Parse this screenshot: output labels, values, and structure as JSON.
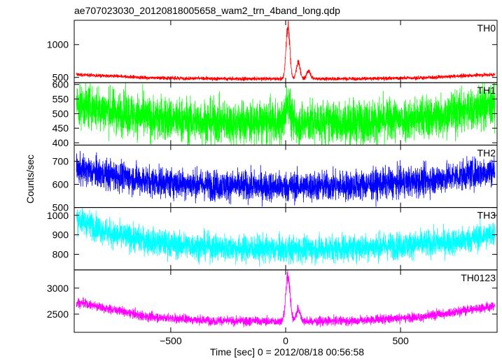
{
  "chart_data": {
    "type": "line",
    "title": "ae707023030_20120818005658_wam2_trn_4band_long.qdp",
    "ylabel": "Counts/sec",
    "xlabel": "Time [sec] 0 = 2012/08/18 00:56:58",
    "xlim": [
      -920,
      920
    ],
    "xticks": [
      -500,
      0,
      500
    ],
    "xtick_labels": [
      "−500",
      "0",
      "500"
    ],
    "panels": [
      {
        "name": "TH0",
        "color": "#ff0000",
        "ylim": [
          420,
          1370
        ],
        "yticks": [
          500,
          1000
        ],
        "baseline": [
          [
            -910,
            545
          ],
          [
            -600,
            495
          ],
          [
            -300,
            480
          ],
          [
            0,
            478
          ],
          [
            300,
            480
          ],
          [
            600,
            495
          ],
          [
            910,
            545
          ]
        ],
        "noise": 14,
        "peaks": [
          [
            10,
            1290
          ],
          [
            55,
            730
          ],
          [
            100,
            600
          ]
        ],
        "peak_width": 8
      },
      {
        "name": "TH1",
        "color": "#00ff00",
        "ylim": [
          392,
          606
        ],
        "yticks": [
          400,
          450,
          500,
          550,
          600
        ],
        "baseline": [
          [
            -910,
            530
          ],
          [
            -600,
            485
          ],
          [
            -300,
            470
          ],
          [
            0,
            468
          ],
          [
            300,
            470
          ],
          [
            600,
            485
          ],
          [
            910,
            530
          ]
        ],
        "noise": 38,
        "peaks": [
          [
            10,
            540
          ]
        ],
        "peak_width": 10
      },
      {
        "name": "TH2",
        "color": "#0000ff",
        "ylim": [
          500,
          770
        ],
        "yticks": [
          500,
          600,
          700
        ],
        "baseline": [
          [
            -910,
            665
          ],
          [
            -600,
            615
          ],
          [
            -300,
            595
          ],
          [
            0,
            590
          ],
          [
            300,
            595
          ],
          [
            600,
            615
          ],
          [
            910,
            660
          ]
        ],
        "noise": 33,
        "peaks": [],
        "peak_width": 10
      },
      {
        "name": "TH3",
        "color": "#00ffff",
        "ylim": [
          720,
          1040
        ],
        "yticks": [
          800,
          900,
          1000
        ],
        "baseline": [
          [
            -910,
            985
          ],
          [
            -750,
            900
          ],
          [
            -500,
            850
          ],
          [
            -200,
            830
          ],
          [
            0,
            825
          ],
          [
            200,
            830
          ],
          [
            500,
            845
          ],
          [
            750,
            865
          ],
          [
            910,
            905
          ]
        ],
        "noise": 35,
        "peaks": [],
        "peak_width": 10
      },
      {
        "name": "TH0123",
        "color": "#ff00ff",
        "ylim": [
          2150,
          3350
        ],
        "yticks": [
          2500,
          3000
        ],
        "baseline": [
          [
            -910,
            2730
          ],
          [
            -600,
            2450
          ],
          [
            -300,
            2370
          ],
          [
            0,
            2360
          ],
          [
            300,
            2370
          ],
          [
            600,
            2450
          ],
          [
            910,
            2660
          ]
        ],
        "noise": 45,
        "peaks": [
          [
            10,
            3280
          ],
          [
            55,
            2600
          ]
        ],
        "peak_width": 9
      }
    ]
  }
}
